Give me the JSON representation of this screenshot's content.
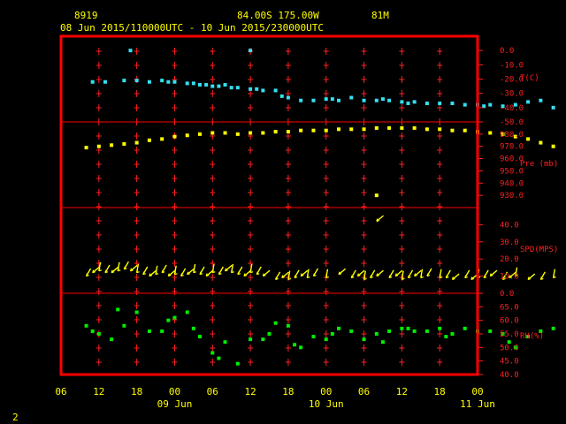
{
  "header": {
    "station_id": "8919",
    "location": "84.00S  175.00W",
    "elevation": "81M",
    "time_range": "08 Jun 2015/110000UTC - 10 Jun 2015/230000UTC"
  },
  "footer_mark": "2",
  "colors": {
    "frame": "#ff0000",
    "tick": "#ff2020",
    "temperature": "#33e0f0",
    "pressure": "#ffff00",
    "wind": "#ffff00",
    "humidity": "#00ee00",
    "text": "#ffff00"
  },
  "chart_data": {
    "type": "scatter",
    "x_unit": "hours since 08 Jun 2015 06:00 UTC",
    "x_ticks": [
      "06",
      "12",
      "18",
      "00",
      "06",
      "12",
      "18",
      "00",
      "06",
      "12",
      "18",
      "00"
    ],
    "day_labels": [
      "09 Jun",
      "10 Jun",
      "11 Jun"
    ],
    "panels": [
      {
        "name": "T(C)",
        "range": [
          -50,
          10
        ],
        "tick_labels": [
          "0.0",
          "-10.0",
          "-20.0",
          "-30.0",
          "-40.0",
          "-50.0"
        ],
        "tick_values": [
          0,
          -10,
          -20,
          -30,
          -40,
          -50
        ],
        "x": [
          5,
          7,
          10,
          12,
          14,
          16,
          17,
          18,
          20,
          21,
          22,
          23,
          24,
          25,
          26,
          27,
          28,
          30,
          31,
          32,
          34,
          35,
          36,
          38,
          40,
          42,
          43,
          44,
          46,
          48,
          50,
          51,
          52,
          54,
          55,
          56,
          58,
          60,
          62,
          64,
          66,
          67,
          68,
          70,
          72,
          74,
          76,
          78
        ],
        "y": [
          -22,
          -22,
          -21,
          -21,
          -22,
          -21,
          -22,
          -22,
          -23,
          -23,
          -24,
          -24,
          -25,
          -25,
          -24,
          -26,
          -26,
          -27,
          -27,
          -28,
          -28,
          -32,
          -33,
          -35,
          -35,
          -34,
          -34,
          -35,
          -33,
          -35,
          -35,
          -34,
          -35,
          -36,
          -37,
          -36,
          -37,
          -37,
          -37,
          -38,
          -38,
          -39,
          -38,
          -39,
          -38,
          -36,
          -35,
          -40
        ],
        "outliers": {
          "x": [
            11,
            30
          ],
          "y": [
            0,
            0
          ]
        }
      },
      {
        "name": "Pre (mb)",
        "range": [
          920,
          990
        ],
        "tick_labels": [
          "980.0",
          "970.0",
          "960.0",
          "950.0",
          "940.0",
          "930.0"
        ],
        "tick_values": [
          980,
          970,
          960,
          950,
          940,
          930
        ],
        "x": [
          4,
          6,
          8,
          10,
          12,
          14,
          16,
          18,
          20,
          22,
          24,
          26,
          28,
          30,
          32,
          34,
          36,
          38,
          40,
          42,
          44,
          46,
          48,
          50,
          52,
          54,
          56,
          58,
          60,
          62,
          64,
          66,
          68,
          70,
          72,
          74,
          76,
          78
        ],
        "y": [
          969,
          970,
          971,
          972,
          973,
          975,
          976,
          978,
          979,
          980,
          981,
          981,
          980,
          981,
          981,
          982,
          982,
          983,
          983,
          983,
          984,
          984,
          984,
          985,
          985,
          985,
          985,
          984,
          984,
          983,
          983,
          982,
          981,
          980,
          978,
          976,
          973,
          970
        ],
        "outliers": {
          "x": [
            50
          ],
          "y": [
            930
          ]
        }
      },
      {
        "name": "SPD(MPS)",
        "range": [
          0,
          50
        ],
        "tick_labels": [
          "40.0",
          "30.0",
          "20.0",
          "10.0",
          "0.0"
        ],
        "tick_values": [
          40,
          30,
          20,
          10,
          0
        ],
        "x": [
          4,
          5,
          6,
          7,
          8,
          9,
          10,
          11,
          12,
          13,
          14,
          15,
          16,
          17,
          18,
          19,
          20,
          21,
          22,
          23,
          24,
          25,
          26,
          27,
          28,
          29,
          30,
          31,
          32,
          34,
          35,
          36,
          37,
          38,
          39,
          40,
          42,
          44,
          46,
          47,
          48,
          49,
          50,
          52,
          53,
          54,
          55,
          56,
          57,
          58,
          60,
          61,
          62,
          64,
          65,
          66,
          67,
          68,
          70,
          71,
          72,
          74,
          76,
          78
        ],
        "y": [
          10,
          12,
          13,
          12,
          12,
          13,
          14,
          13,
          12,
          11,
          10,
          11,
          12,
          10,
          11,
          10,
          11,
          12,
          11,
          10,
          12,
          11,
          13,
          12,
          11,
          10,
          12,
          11,
          10,
          8,
          9,
          8,
          9,
          10,
          9,
          10,
          9,
          11,
          9,
          10,
          8,
          9,
          10,
          9,
          10,
          8,
          9,
          10,
          9,
          10,
          9,
          9,
          8,
          9,
          8,
          9,
          9,
          10,
          8,
          9,
          10,
          8,
          8,
          9
        ],
        "outliers": {
          "x": [
            50
          ],
          "y": [
            42
          ]
        }
      },
      {
        "name": "RH(%)",
        "range": [
          40,
          70
        ],
        "tick_labels": [
          "65.0",
          "60.0",
          "55.0",
          "50.0",
          "45.0",
          "40.0"
        ],
        "tick_values": [
          65,
          60,
          55,
          50,
          45,
          40
        ],
        "x": [
          4,
          5,
          6,
          8,
          9,
          10,
          12,
          14,
          16,
          17,
          18,
          20,
          21,
          22,
          24,
          25,
          26,
          28,
          30,
          32,
          33,
          34,
          36,
          37,
          38,
          40,
          42,
          43,
          44,
          46,
          48,
          50,
          51,
          52,
          54,
          55,
          56,
          58,
          60,
          61,
          62,
          64,
          66,
          68,
          70,
          71,
          72,
          74,
          76,
          78
        ],
        "y": [
          58,
          56,
          55,
          53,
          64,
          58,
          63,
          56,
          56,
          60,
          61,
          63,
          57,
          54,
          48,
          46,
          52,
          44,
          53,
          53,
          55,
          59,
          58,
          51,
          50,
          54,
          53,
          55,
          57,
          56,
          53,
          55,
          52,
          56,
          57,
          57,
          56,
          56,
          57,
          54,
          55,
          57,
          56,
          56,
          55,
          52,
          50,
          54,
          56,
          57
        ],
        "outliers": {
          "x": [],
          "y": []
        }
      }
    ]
  }
}
